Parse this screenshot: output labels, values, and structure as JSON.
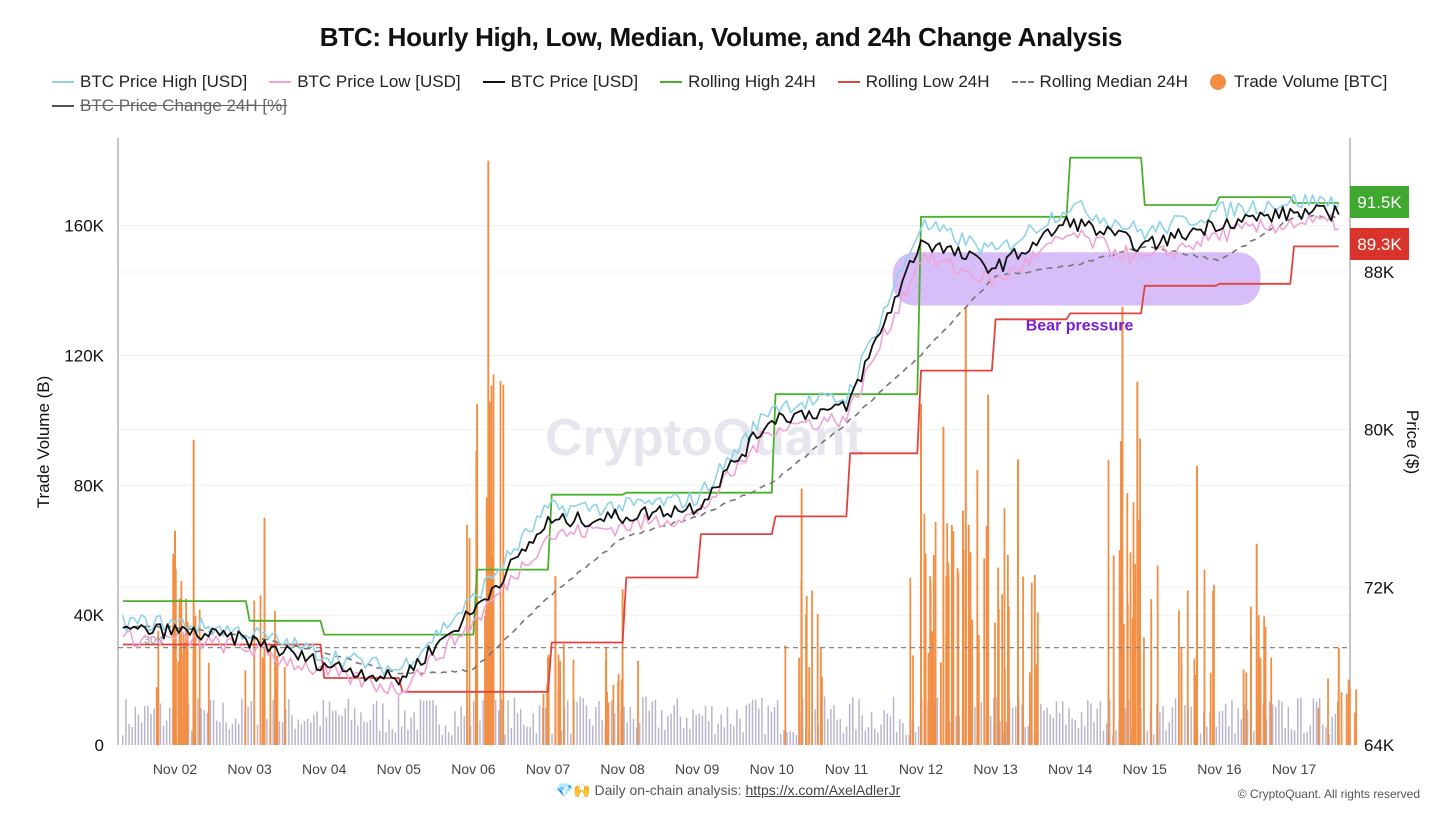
{
  "title": "BTC: Hourly High, Low, Median, Volume, and 24h Change Analysis",
  "legend": [
    {
      "label": "BTC Price High [USD]",
      "color": "#8fd3e8",
      "style": "line"
    },
    {
      "label": "BTC Price Low [USD]",
      "color": "#f0a3d4",
      "style": "line"
    },
    {
      "label": "BTC Price [USD]",
      "color": "#111111",
      "style": "line"
    },
    {
      "label": "Rolling High 24H",
      "color": "#4caf2e",
      "style": "line"
    },
    {
      "label": "Rolling Low 24H",
      "color": "#e0443e",
      "style": "line"
    },
    {
      "label": "Rolling Median 24H",
      "color": "#777777",
      "style": "dash"
    },
    {
      "label": "Trade Volume [BTC]",
      "color": "#f28f45",
      "style": "dot"
    },
    {
      "label": "BTC Price Change 24H [%]",
      "color": "#555555",
      "style": "line-hidden"
    }
  ],
  "footer": {
    "emoji": "💎🙌",
    "text": "Daily on-chain analysis:",
    "link": "https://x.com/AxelAdlerJr"
  },
  "copyright": "© CryptoQuant. All rights reserved",
  "watermark": "CryptoQuant",
  "annotation": {
    "label": "Bear pressure",
    "color": "#7b1fd6",
    "band_fill": "#c9a8f7"
  },
  "price_badges": [
    {
      "label": "91.5K",
      "value": 91500,
      "color": "#3fa82e"
    },
    {
      "label": "89.3K",
      "value": 89300,
      "color": "#d9342b"
    }
  ],
  "chart_data": {
    "type": "line",
    "x_categories": [
      "Nov 02",
      "Nov 03",
      "Nov 04",
      "Nov 05",
      "Nov 06",
      "Nov 07",
      "Nov 08",
      "Nov 09",
      "Nov 10",
      "Nov 11",
      "Nov 12",
      "Nov 13",
      "Nov 14",
      "Nov 15",
      "Nov 16",
      "Nov 17"
    ],
    "left_axis": {
      "label": "Trade Volume (B)",
      "ticks": [
        "0",
        "40K",
        "80K",
        "120K",
        "160K"
      ],
      "range": [
        0,
        187000
      ]
    },
    "right_axis": {
      "label": "Price ($)",
      "ticks": [
        "64K",
        "72K",
        "80K",
        "88K"
      ],
      "range": [
        64000,
        94800
      ]
    },
    "reference_line": {
      "label": "30K",
      "value": 30000
    },
    "series": [
      {
        "name": "BTC Price [USD]",
        "axis": "right",
        "daily": [
          69800,
          69300,
          68100,
          67300,
          70800,
          75300,
          75600,
          76100,
          80600,
          81100,
          89600,
          88200,
          90600,
          89300,
          90500,
          91000
        ]
      },
      {
        "name": "BTC Price High [USD]",
        "axis": "right",
        "daily": [
          70200,
          69700,
          68600,
          67800,
          71400,
          76000,
          76100,
          76500,
          81200,
          81600,
          90400,
          89000,
          91400,
          90000,
          91100,
          91600
        ]
      },
      {
        "name": "BTC Price Low [USD]",
        "axis": "right",
        "daily": [
          69400,
          68900,
          67700,
          66800,
          70200,
          74600,
          75100,
          75700,
          80100,
          80600,
          88800,
          87500,
          89900,
          88600,
          89900,
          90500
        ]
      },
      {
        "name": "Rolling High 24H",
        "axis": "right",
        "daily": [
          71300,
          70300,
          69600,
          69600,
          72900,
          76700,
          76800,
          76800,
          81800,
          81800,
          90800,
          90800,
          93800,
          91400,
          91800,
          91500
        ]
      },
      {
        "name": "Rolling Low 24H",
        "axis": "right",
        "daily": [
          69100,
          69100,
          67400,
          66700,
          66700,
          69200,
          72500,
          74700,
          75600,
          78800,
          83000,
          85600,
          85900,
          87300,
          87400,
          89300
        ]
      },
      {
        "name": "Rolling Median 24H",
        "axis": "right",
        "daily": [
          70000,
          69500,
          68700,
          67600,
          67800,
          71500,
          74500,
          75600,
          77300,
          80300,
          83800,
          87800,
          88300,
          89300,
          88600,
          90800
        ]
      }
    ],
    "volume": {
      "name": "Trade Volume [BTC]",
      "axis": "left",
      "spikes": [
        {
          "day": 0.0,
          "value": 66000
        },
        {
          "day": 0.25,
          "value": 94000
        },
        {
          "day": 1.2,
          "value": 70000
        },
        {
          "day": 4.05,
          "value": 105000
        },
        {
          "day": 4.2,
          "value": 180000
        },
        {
          "day": 5.1,
          "value": 52000
        },
        {
          "day": 6.0,
          "value": 48000
        },
        {
          "day": 8.4,
          "value": 79000
        },
        {
          "day": 10.0,
          "value": 105000
        },
        {
          "day": 10.3,
          "value": 98000
        },
        {
          "day": 10.6,
          "value": 135000
        },
        {
          "day": 10.9,
          "value": 108000
        },
        {
          "day": 11.3,
          "value": 88000
        },
        {
          "day": 12.7,
          "value": 135000
        },
        {
          "day": 12.9,
          "value": 112000
        },
        {
          "day": 13.7,
          "value": 86000
        },
        {
          "day": 14.5,
          "value": 62000
        },
        {
          "day": 15.6,
          "value": 30000
        }
      ]
    }
  }
}
